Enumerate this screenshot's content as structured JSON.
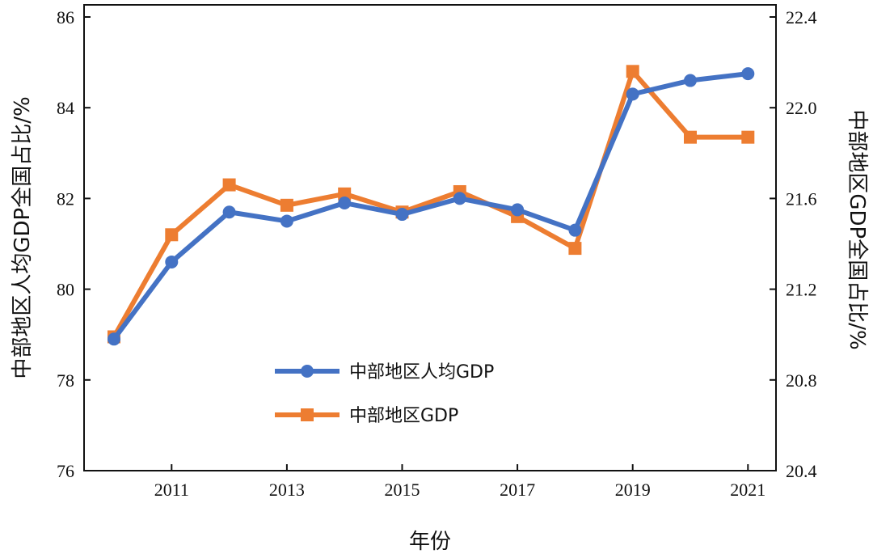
{
  "chart_data": {
    "type": "line",
    "x": [
      2010,
      2011,
      2012,
      2013,
      2014,
      2015,
      2016,
      2017,
      2018,
      2019,
      2020,
      2021
    ],
    "xticks": [
      "2011",
      "2013",
      "2015",
      "2017",
      "2019",
      "2021"
    ],
    "xlabel": "年份",
    "ylabel_left": "中部地区人均GDP全国占比/%",
    "ylabel_right": "中部地区GDP全国占比/%",
    "ylim_left": [
      76,
      86
    ],
    "ylim_right": [
      20.4,
      22.4
    ],
    "yticks_left": [
      "76",
      "78",
      "80",
      "82",
      "84",
      "86"
    ],
    "yticks_right": [
      "20.4",
      "20.8",
      "21.2",
      "21.6",
      "22.0",
      "22.4"
    ],
    "legend_position": "lower-center",
    "grid": false,
    "series": [
      {
        "name": "中部地区人均GDP",
        "axis": "left",
        "marker": "circle",
        "color": "#4472C4",
        "values": [
          78.9,
          80.6,
          81.7,
          81.5,
          81.9,
          81.65,
          82.0,
          81.75,
          81.3,
          84.3,
          84.6,
          84.75
        ]
      },
      {
        "name": "中部地区GDP",
        "axis": "right",
        "marker": "square",
        "color": "#ED7D31",
        "values": [
          20.99,
          21.44,
          21.66,
          21.57,
          21.62,
          21.54,
          21.63,
          21.52,
          21.38,
          22.16,
          21.87,
          21.87
        ]
      }
    ]
  }
}
